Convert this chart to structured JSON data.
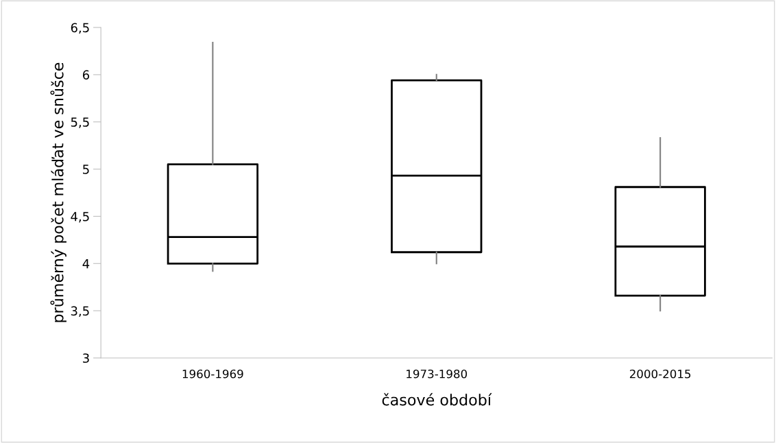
{
  "chart_data": {
    "type": "box",
    "xlabel": "časové období",
    "ylabel": "průměrný počet mláďat ve snůšce",
    "categories": [
      "1960-1969",
      "1973-1980",
      "2000-2015"
    ],
    "boxes": [
      {
        "low": 3.92,
        "q1": 4.0,
        "median": 4.28,
        "q3": 5.05,
        "high": 6.34
      },
      {
        "low": 4.0,
        "q1": 4.12,
        "median": 4.93,
        "q3": 5.94,
        "high": 6.0
      },
      {
        "low": 3.5,
        "q1": 3.66,
        "median": 4.18,
        "q3": 4.81,
        "high": 5.33
      }
    ],
    "ylim": [
      3,
      6.5
    ],
    "yticks": [
      {
        "value": 3,
        "label": "3"
      },
      {
        "value": 3.5,
        "label": "3,5"
      },
      {
        "value": 4,
        "label": "4"
      },
      {
        "value": 4.5,
        "label": "4,5"
      },
      {
        "value": 5,
        "label": "5"
      },
      {
        "value": 5.5,
        "label": "5,5"
      },
      {
        "value": 6,
        "label": "6"
      },
      {
        "value": 6.5,
        "label": "6,5"
      }
    ],
    "grid": false,
    "legend": false
  }
}
